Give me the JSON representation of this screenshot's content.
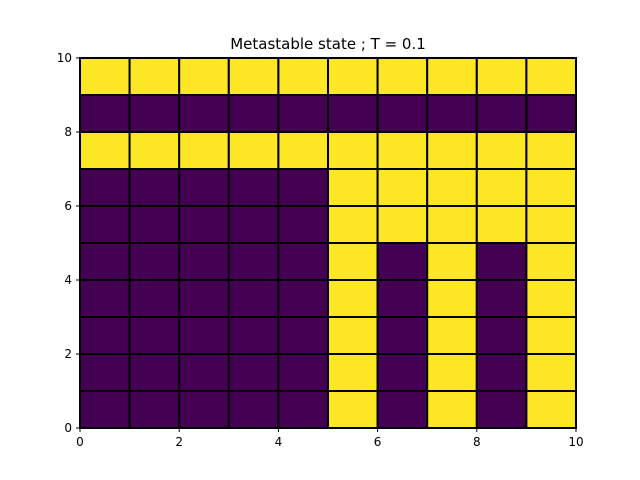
{
  "chart_data": {
    "type": "heatmap",
    "title": "Metastable state ; T = 0.1",
    "xlabel": "",
    "ylabel": "",
    "xlim": [
      0,
      10
    ],
    "ylim": [
      0,
      10
    ],
    "xticks": [
      "0",
      "2",
      "4",
      "6",
      "8",
      "10"
    ],
    "yticks": [
      "0",
      "2",
      "4",
      "6",
      "8",
      "10"
    ],
    "colors": {
      "-1": "#440154",
      "1": "#fde725",
      "edge": "#000000"
    },
    "grid_rows_top_to_bottom": [
      [
        1,
        1,
        1,
        1,
        1,
        1,
        1,
        1,
        1,
        1
      ],
      [
        -1,
        -1,
        -1,
        -1,
        -1,
        -1,
        -1,
        -1,
        -1,
        -1
      ],
      [
        1,
        1,
        1,
        1,
        1,
        1,
        1,
        1,
        1,
        1
      ],
      [
        -1,
        -1,
        -1,
        -1,
        -1,
        1,
        1,
        1,
        1,
        1
      ],
      [
        -1,
        -1,
        -1,
        -1,
        -1,
        1,
        1,
        1,
        1,
        1
      ],
      [
        -1,
        -1,
        -1,
        -1,
        -1,
        1,
        -1,
        1,
        -1,
        1
      ],
      [
        -1,
        -1,
        -1,
        -1,
        -1,
        1,
        -1,
        1,
        -1,
        1
      ],
      [
        -1,
        -1,
        -1,
        -1,
        -1,
        1,
        -1,
        1,
        -1,
        1
      ],
      [
        -1,
        -1,
        -1,
        -1,
        -1,
        1,
        -1,
        1,
        -1,
        1
      ],
      [
        -1,
        -1,
        -1,
        -1,
        -1,
        1,
        -1,
        1,
        -1,
        1
      ]
    ]
  }
}
